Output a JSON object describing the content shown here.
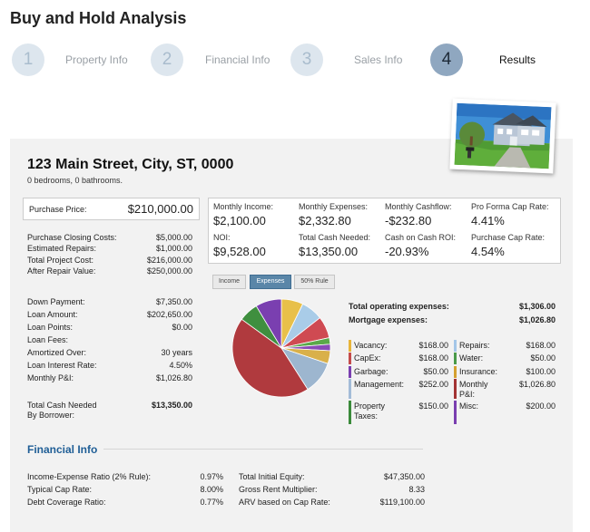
{
  "title": "Buy and Hold Analysis",
  "steps": [
    {
      "num": "1",
      "label": "Property Info"
    },
    {
      "num": "2",
      "label": "Financial Info"
    },
    {
      "num": "3",
      "label": "Sales Info"
    },
    {
      "num": "4",
      "label": "Results"
    }
  ],
  "active_step": 4,
  "property": {
    "address": "123 Main Street, City, ST, 0000",
    "rooms": "0 bedrooms, 0 bathrooms."
  },
  "purchase_price": {
    "label": "Purchase Price:",
    "value": "$210,000.00"
  },
  "costs": [
    {
      "label": "Purchase Closing Costs:",
      "value": "$5,000.00"
    },
    {
      "label": "Estimated Repairs:",
      "value": "$1,000.00"
    },
    {
      "label": "Total Project Cost:",
      "value": "$216,000.00"
    },
    {
      "label": "After Repair Value:",
      "value": "$250,000.00"
    }
  ],
  "loan": [
    {
      "label": "Down Payment:",
      "value": "$7,350.00"
    },
    {
      "label": "Loan Amount:",
      "value": "$202,650.00"
    },
    {
      "label": "Loan Points:",
      "value": "$0.00"
    },
    {
      "label": "Loan Fees:",
      "value": ""
    },
    {
      "label": "Amortized Over:",
      "value": "30 years"
    },
    {
      "label": "Loan Interest Rate:",
      "value": "4.50%"
    },
    {
      "label": "Monthly P&I:",
      "value": "$1,026.80"
    }
  ],
  "cash_needed": {
    "label_line1": "Total Cash Needed",
    "label_line2": "By Borrower:",
    "value": "$13,350.00"
  },
  "metrics": [
    {
      "label": "Monthly Income:",
      "value": "$2,100.00"
    },
    {
      "label": "Monthly Expenses:",
      "value": "$2,332.80"
    },
    {
      "label": "Monthly Cashflow:",
      "value": "-$232.80"
    },
    {
      "label": "Pro Forma Cap Rate:",
      "value": "4.41%"
    },
    {
      "label": "NOI:",
      "value": "$9,528.00"
    },
    {
      "label": "Total Cash Needed:",
      "value": "$13,350.00"
    },
    {
      "label": "Cash on Cash ROI:",
      "value": "-20.93%"
    },
    {
      "label": "Purchase Cap Rate:",
      "value": "4.54%"
    }
  ],
  "tabs": [
    "Income",
    "Expenses",
    "50% Rule"
  ],
  "active_tab": "Expenses",
  "totals": [
    {
      "label": "Total operating expenses:",
      "value": "$1,306.00"
    },
    {
      "label": "Mortgage expenses:",
      "value": "$1,026.80"
    }
  ],
  "expenses_left": [
    {
      "label": "Vacancy:",
      "value": "$168.00",
      "color": "#e8b53a"
    },
    {
      "label": "CapEx:",
      "value": "$168.00",
      "color": "#c44b4b"
    },
    {
      "label": "Garbage:",
      "value": "$50.00",
      "color": "#7a3fb0"
    },
    {
      "label": "Management:",
      "value": "$252.00",
      "color": "#a3bcd8"
    },
    {
      "label": "Property\nTaxes:",
      "value": "$150.00",
      "color": "#3a8a3a"
    }
  ],
  "expenses_right": [
    {
      "label": "Repairs:",
      "value": "$168.00",
      "color": "#a3c6e8"
    },
    {
      "label": "Water:",
      "value": "$50.00",
      "color": "#4a9a4a"
    },
    {
      "label": "Insurance:",
      "value": "$100.00",
      "color": "#d4a030"
    },
    {
      "label": "Monthly\nP&I:",
      "value": "$1,026.80",
      "color": "#a33434"
    },
    {
      "label": "Misc:",
      "value": "$200.00",
      "color": "#7a3fb0"
    }
  ],
  "chart_data": {
    "type": "pie",
    "slices": [
      {
        "name": "Vacancy",
        "value": 168.0,
        "color": "#e8c04a"
      },
      {
        "name": "Repairs",
        "value": 168.0,
        "color": "#a9cce8"
      },
      {
        "name": "CapEx",
        "value": 168.0,
        "color": "#cf4a52"
      },
      {
        "name": "Water",
        "value": 50.0,
        "color": "#5aa84a"
      },
      {
        "name": "Garbage",
        "value": 50.0,
        "color": "#8a4ab8"
      },
      {
        "name": "Insurance",
        "value": 100.0,
        "color": "#d9b04a"
      },
      {
        "name": "Management",
        "value": 252.0,
        "color": "#9db6cf"
      },
      {
        "name": "Monthly P&I",
        "value": 1026.8,
        "color": "#b03a3e"
      },
      {
        "name": "Property Taxes",
        "value": 150.0,
        "color": "#3f8f3f"
      },
      {
        "name": "Misc",
        "value": 200.0,
        "color": "#7a3fb0"
      }
    ]
  },
  "financial": {
    "title": "Financial Info",
    "left": [
      {
        "label": "Income-Expense Ratio (2% Rule):",
        "value": "0.97%"
      },
      {
        "label": "Typical Cap Rate:",
        "value": "8.00%"
      },
      {
        "label": "Debt Coverage Ratio:",
        "value": "0.77%"
      }
    ],
    "right": [
      {
        "label": "Total Initial Equity:",
        "value": "$47,350.00"
      },
      {
        "label": "Gross Rent Multiplier:",
        "value": "8.33"
      },
      {
        "label": "ARV based on Cap Rate:",
        "value": "$119,100.00"
      }
    ]
  }
}
